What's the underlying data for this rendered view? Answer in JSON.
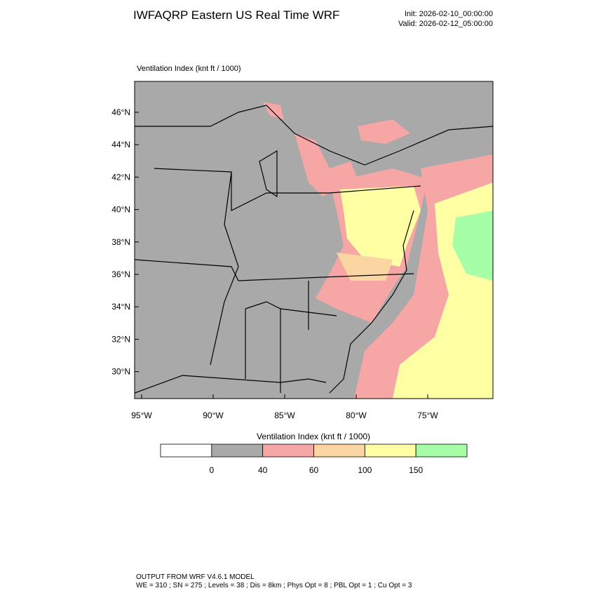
{
  "header": {
    "title": "IWFAQRP Eastern US Real Time WRF",
    "init": "Init: 2026-02-10_00:00:00",
    "valid": "Valid: 2026-02-12_05:00:00"
  },
  "map": {
    "subtitle": "Ventilation Index   (knt ft / 1000)",
    "lat_ticks": [
      {
        "value": 46,
        "label": "46°N"
      },
      {
        "value": 44,
        "label": "44°N"
      },
      {
        "value": 42,
        "label": "42°N"
      },
      {
        "value": 40,
        "label": "40°N"
      },
      {
        "value": 38,
        "label": "38°N"
      },
      {
        "value": 36,
        "label": "36°N"
      },
      {
        "value": 34,
        "label": "34°N"
      },
      {
        "value": 32,
        "label": "32°N"
      },
      {
        "value": 30,
        "label": "30°N"
      }
    ],
    "lon_ticks": [
      {
        "value": -95,
        "label": "95°W"
      },
      {
        "value": -90,
        "label": "90°W"
      },
      {
        "value": -85,
        "label": "85°W"
      },
      {
        "value": -80,
        "label": "80°W"
      },
      {
        "value": -75,
        "label": "75°W"
      }
    ]
  },
  "colorbar": {
    "title": "Ventilation Index  (knt ft / 1000)",
    "levels": [
      0,
      40,
      60,
      100,
      150
    ],
    "colors": [
      "#ffffff",
      "#a9a9a9",
      "#f7a6a6",
      "#fcd6a2",
      "#ffffa3",
      "#a6ffa6"
    ]
  },
  "footer": {
    "line1": "OUTPUT FROM WRF V4.6.1 MODEL",
    "line2": "WE = 310 ; SN = 275 ; Levels = 38 ; Dis = 8km ; Phys Opt = 8 ; PBL Opt = 1 ; Cu Opt = 3"
  }
}
